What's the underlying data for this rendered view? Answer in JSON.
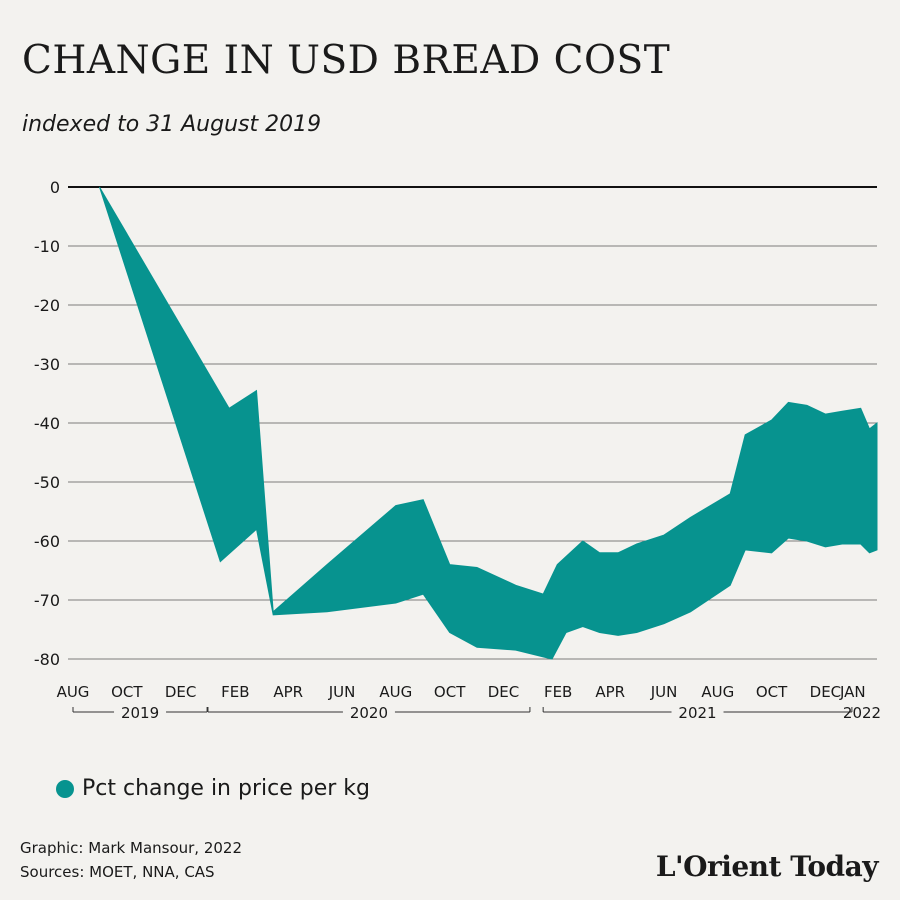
{
  "title": "CHANGE IN USD BREAD COST",
  "subtitle": "indexed to 31 August 2019",
  "colors": {
    "fill": "#07938f",
    "grid": "#555555",
    "zero_line": "#111111",
    "background": "#f3f2ef"
  },
  "legend_label": "Pct change in price per kg",
  "credit_line1": "Graphic: Mark Mansour, 2022",
  "credit_line2": "Sources: MOET, NNA, CAS",
  "logo": "L'Orient Today",
  "chart_data": {
    "type": "area",
    "title": "CHANGE IN USD BREAD COST",
    "subtitle": "indexed to 31 August 2019",
    "ylim": [
      -80,
      0
    ],
    "yticks": [
      0,
      -10,
      -20,
      -30,
      -40,
      -50,
      -60,
      -70,
      -80
    ],
    "xlim": [
      "2019-08-01",
      "2022-01-31"
    ],
    "month_ticks": [
      {
        "label": "AUG",
        "date": "2019-08-01"
      },
      {
        "label": "OCT",
        "date": "2019-10-01"
      },
      {
        "label": "DEC",
        "date": "2019-12-01"
      },
      {
        "label": "FEB",
        "date": "2020-02-01"
      },
      {
        "label": "APR",
        "date": "2020-04-01"
      },
      {
        "label": "JUN",
        "date": "2020-06-01"
      },
      {
        "label": "AUG",
        "date": "2020-08-01"
      },
      {
        "label": "OCT",
        "date": "2020-10-01"
      },
      {
        "label": "DEC",
        "date": "2020-12-01"
      },
      {
        "label": "FEB",
        "date": "2021-02-01"
      },
      {
        "label": "APR",
        "date": "2021-04-01"
      },
      {
        "label": "JUN",
        "date": "2021-06-01"
      },
      {
        "label": "AUG",
        "date": "2021-08-01"
      },
      {
        "label": "OCT",
        "date": "2021-10-01"
      },
      {
        "label": "DEC",
        "date": "2021-12-01"
      },
      {
        "label": "JAN",
        "date": "2022-01-01"
      }
    ],
    "year_groups": [
      {
        "label": "2019",
        "start": "2019-08-01",
        "end": "2019-12-31"
      },
      {
        "label": "2020",
        "start": "2020-01-01",
        "end": "2020-12-31"
      },
      {
        "label": "2021",
        "start": "2021-01-15",
        "end": "2021-12-31"
      },
      {
        "label": "2022",
        "start": "2022-01-01",
        "end": "2022-01-31"
      }
    ],
    "series": [
      {
        "name": "Pct change in price per kg",
        "upper": [
          {
            "x": "2019-08-31",
            "y": 0
          },
          {
            "x": "2020-01-25",
            "y": -37.5
          },
          {
            "x": "2020-02-25",
            "y": -34.5
          },
          {
            "x": "2020-03-15",
            "y": -72
          },
          {
            "x": "2020-05-15",
            "y": -64
          },
          {
            "x": "2020-08-01",
            "y": -54
          },
          {
            "x": "2020-09-01",
            "y": -53
          },
          {
            "x": "2020-10-01",
            "y": -64
          },
          {
            "x": "2020-11-01",
            "y": -64.5
          },
          {
            "x": "2020-12-15",
            "y": -67.5
          },
          {
            "x": "2021-01-15",
            "y": -69
          },
          {
            "x": "2021-01-31",
            "y": -64
          },
          {
            "x": "2021-03-01",
            "y": -60
          },
          {
            "x": "2021-03-20",
            "y": -62
          },
          {
            "x": "2021-04-10",
            "y": -62
          },
          {
            "x": "2021-05-01",
            "y": -60.5
          },
          {
            "x": "2021-06-01",
            "y": -59
          },
          {
            "x": "2021-07-01",
            "y": -56
          },
          {
            "x": "2021-08-15",
            "y": -52
          },
          {
            "x": "2021-09-01",
            "y": -42
          },
          {
            "x": "2021-10-01",
            "y": -39.5
          },
          {
            "x": "2021-10-20",
            "y": -36.5
          },
          {
            "x": "2021-11-10",
            "y": -37
          },
          {
            "x": "2021-12-01",
            "y": -38.5
          },
          {
            "x": "2021-12-20",
            "y": -38
          },
          {
            "x": "2022-01-10",
            "y": -37.5
          },
          {
            "x": "2022-01-20",
            "y": -41
          },
          {
            "x": "2022-01-31",
            "y": -40
          }
        ],
        "lower": [
          {
            "x": "2019-08-31",
            "y": 0
          },
          {
            "x": "2020-01-15",
            "y": -63.5
          },
          {
            "x": "2020-02-25",
            "y": -58
          },
          {
            "x": "2020-03-15",
            "y": -72.5
          },
          {
            "x": "2020-05-15",
            "y": -72
          },
          {
            "x": "2020-08-01",
            "y": -70.5
          },
          {
            "x": "2020-09-01",
            "y": -69
          },
          {
            "x": "2020-10-01",
            "y": -75.5
          },
          {
            "x": "2020-11-01",
            "y": -78
          },
          {
            "x": "2020-12-15",
            "y": -78.5
          },
          {
            "x": "2021-01-25",
            "y": -80
          },
          {
            "x": "2021-02-10",
            "y": -75.5
          },
          {
            "x": "2021-03-01",
            "y": -74.5
          },
          {
            "x": "2021-03-20",
            "y": -75.5
          },
          {
            "x": "2021-04-10",
            "y": -76
          },
          {
            "x": "2021-05-01",
            "y": -75.5
          },
          {
            "x": "2021-06-01",
            "y": -74
          },
          {
            "x": "2021-07-01",
            "y": -72
          },
          {
            "x": "2021-08-15",
            "y": -67.5
          },
          {
            "x": "2021-09-01",
            "y": -61.5
          },
          {
            "x": "2021-10-01",
            "y": -62
          },
          {
            "x": "2021-10-20",
            "y": -59.5
          },
          {
            "x": "2021-11-10",
            "y": -60
          },
          {
            "x": "2021-12-01",
            "y": -61
          },
          {
            "x": "2021-12-20",
            "y": -60.5
          },
          {
            "x": "2022-01-10",
            "y": -60.5
          },
          {
            "x": "2022-01-20",
            "y": -62
          },
          {
            "x": "2022-01-31",
            "y": -61.5
          }
        ]
      }
    ],
    "grid": true,
    "legend_position": "bottom-left"
  }
}
